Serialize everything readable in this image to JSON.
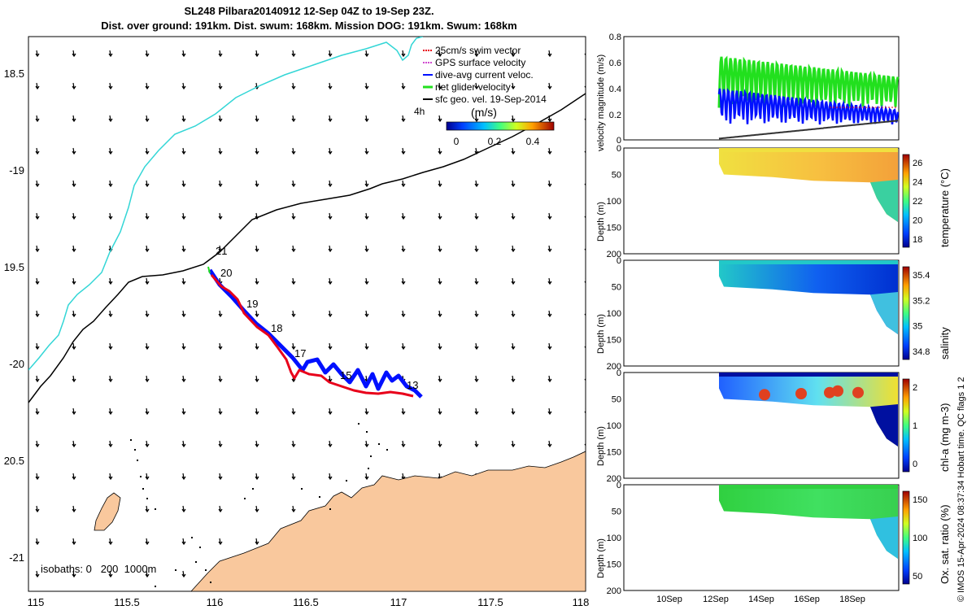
{
  "title": {
    "line1": "SL248 Pilbara20140912 12-Sep 04Z to 19-Sep 23Z.",
    "line2": "Dist. over ground: 191km. Dist. swum: 168km. Mission DOG: 191km. Swum: 168km"
  },
  "map": {
    "lon_ticks": [
      "115",
      "115.5",
      "116",
      "116.5",
      "117",
      "117.5",
      "118"
    ],
    "lat_ticks": [
      "18.5",
      "-19",
      "19.5",
      "-20",
      "20.5",
      "-21"
    ],
    "isobaths_label": "isobaths: 0   200  1000m",
    "day_labels": [
      "21",
      "20",
      "19",
      "18",
      "17",
      "15",
      "13"
    ],
    "legend": [
      {
        "label": "25cm/s swim vector",
        "color": "#e8001a"
      },
      {
        "label": "GPS surface velocity",
        "color": "#d04ad0"
      },
      {
        "label": "dive-avg current veloc.",
        "color": "#0010ff"
      },
      {
        "label": "net glider velocity",
        "color": "#22e01e"
      },
      {
        "label": "sfc geo. vel. 19-Sep-2014",
        "color": "#000000"
      }
    ],
    "interval_label": "4h",
    "colorbar": {
      "label": "(m/s)",
      "ticks": [
        "0",
        "0.2",
        "0.4"
      ]
    },
    "colors": {
      "land": "#f9c89d",
      "isobath_200": "#33d6d6",
      "isobath_1000": "#000000",
      "track_current": "#0010ff",
      "track_swim": "#e8001a"
    }
  },
  "panels": {
    "velocity": {
      "ylabel": "velocity magnitude (m/s)",
      "yticks": [
        "0.8",
        "0.6",
        "0.4",
        "0.2",
        "0"
      ]
    },
    "temperature": {
      "ylabel": "Depth (m)",
      "cbar_label": "temperature (°C)",
      "cbar_ticks": [
        "26",
        "24",
        "22",
        "20",
        "18"
      ],
      "yticks": [
        "0",
        "50",
        "100",
        "150",
        "200"
      ]
    },
    "salinity": {
      "ylabel": "Depth (m)",
      "cbar_label": "salinity",
      "cbar_ticks": [
        "35.4",
        "35.2",
        "35",
        "34.8"
      ],
      "yticks": [
        "0",
        "50",
        "100",
        "150",
        "200"
      ]
    },
    "chla": {
      "ylabel": "Depth (m)",
      "cbar_label": "chl-a (mg m-3)",
      "cbar_ticks": [
        "2",
        "1",
        "0"
      ],
      "yticks": [
        "0",
        "50",
        "100",
        "150",
        "200"
      ]
    },
    "oxygen": {
      "ylabel": "Depth (m)",
      "cbar_label": "Ox. sat. ratio (%)",
      "cbar_ticks": [
        "150",
        "100",
        "50"
      ],
      "yticks": [
        "0",
        "50",
        "100",
        "150",
        "200"
      ]
    },
    "time_ticks": [
      "10Sep",
      "12Sep",
      "14Sep",
      "16Sep",
      "18Sep"
    ]
  },
  "side_note": "© IMOS 15-Apr-2024 08:37:34 Hobart time. QC flags 1  2"
}
